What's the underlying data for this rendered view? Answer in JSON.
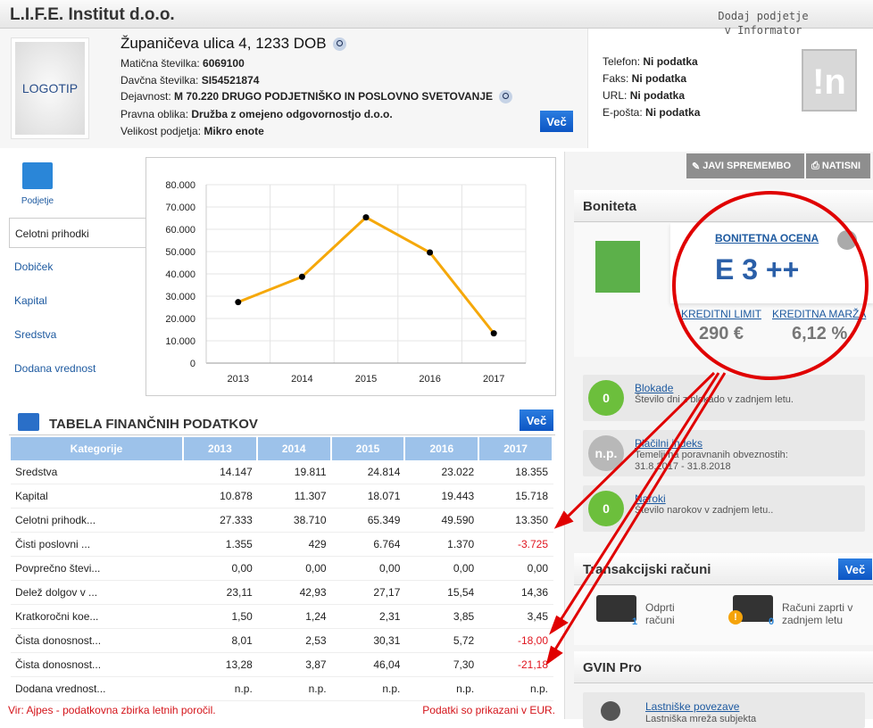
{
  "company": {
    "name": "L.I.F.E. Institut d.o.o.",
    "logo": "LOGOTIP",
    "address": "Županičeva ulica 4, 1233 DOB",
    "fields": [
      {
        "label": "Matična številka: ",
        "value": "6069100"
      },
      {
        "label": "Davčna številka: ",
        "value": "SI54521874"
      },
      {
        "label": "Dejavnost: ",
        "value": "M 70.220 DRUGO PODJETNIŠKO IN POSLOVNO SVETOVANJE"
      },
      {
        "label": "Pravna oblika: ",
        "value": "Družba z omejeno odgovornostjo d.o.o."
      },
      {
        "label": "Velikost podjetja: ",
        "value": "Mikro enote"
      }
    ],
    "vec": "Več"
  },
  "contact": [
    {
      "label": "Telefon: ",
      "value": "Ni podatka"
    },
    {
      "label": "Faks: ",
      "value": "Ni podatka"
    },
    {
      "label": "URL: ",
      "value": "Ni podatka"
    },
    {
      "label": "E-pošta: ",
      "value": "Ni podatka"
    }
  ],
  "informator": {
    "note": "Dodaj podjetje v Informator",
    "logo": "!n"
  },
  "tabs": {
    "icon_label": "Podjetje",
    "items": [
      "Celotni prihodki",
      "Dobiček",
      "Kapital",
      "Sredstva",
      "Dodana vrednost"
    ],
    "selected": 0
  },
  "chart_data": {
    "type": "line",
    "categories": [
      "2013",
      "2014",
      "2015",
      "2016",
      "2017"
    ],
    "values": [
      27333,
      38710,
      65349,
      49590,
      13350
    ],
    "ylim": [
      0,
      80000
    ],
    "yticks": [
      "0",
      "10.000",
      "20.000",
      "30.000",
      "40.000",
      "50.000",
      "60.000",
      "70.000",
      "80.000"
    ],
    "grid": true,
    "color": "#f5a80a"
  },
  "table": {
    "title": "TABELA FINANČNIH PODATKOV",
    "vec": "Več",
    "headers": [
      "Kategorije",
      "2013",
      "2014",
      "2015",
      "2016",
      "2017"
    ],
    "rows": [
      [
        "Sredstva",
        "14.147",
        "19.811",
        "24.814",
        "23.022",
        "18.355"
      ],
      [
        "Kapital",
        "10.878",
        "11.307",
        "18.071",
        "19.443",
        "15.718"
      ],
      [
        "Celotni prihodk...",
        "27.333",
        "38.710",
        "65.349",
        "49.590",
        "13.350"
      ],
      [
        "Čisti poslovni ...",
        "1.355",
        "429",
        "6.764",
        "1.370",
        "-3.725"
      ],
      [
        "Povprečno števi...",
        "0,00",
        "0,00",
        "0,00",
        "0,00",
        "0,00"
      ],
      [
        "Delež dolgov v ...",
        "23,11",
        "42,93",
        "27,17",
        "15,54",
        "14,36"
      ],
      [
        "Kratkoročni koe...",
        "1,50",
        "1,24",
        "2,31",
        "3,85",
        "3,45"
      ],
      [
        "Čista donosnost...",
        "8,01",
        "2,53",
        "30,31",
        "5,72",
        "-18,00"
      ],
      [
        "Čista donosnost...",
        "13,28",
        "3,87",
        "46,04",
        "7,30",
        "-21,18"
      ],
      [
        "Dodana vrednost...",
        "n.p.",
        "n.p.",
        "n.p.",
        "n.p.",
        "n.p."
      ]
    ],
    "source": "Vir: Ajpes - podatkovna zbirka letnih poročil.",
    "currency": "Podatki so prikazani v EUR."
  },
  "toolbar": {
    "report": "JAVI SPREMEMBO",
    "print": "NATISNI"
  },
  "boniteta": {
    "title": "Boniteta",
    "rating_label": "BONITETNA OCENA",
    "rating": "E 3 ++",
    "limit_label": "KREDITNI LIMIT",
    "limit": "290 €",
    "margin_label": "KREDITNA MARŽA",
    "margin": "6,12 %"
  },
  "indicators": [
    {
      "badge": "0",
      "title": "Blokade",
      "desc": "Število dni z blokado v zadnjem letu.",
      "color": "#6cbf3c"
    },
    {
      "badge": "n.p.",
      "title": "Plačilni indeks",
      "desc": "Temelji na poravnanih obveznostih:",
      "desc2": "31.8.2017 - 31.8.2018",
      "color": "#b8b8b8"
    },
    {
      "badge": "0",
      "title": "Naroki",
      "desc": "Število narokov v zadnjem letu..",
      "color": "#6cbf3c"
    }
  ],
  "accounts": {
    "title": "Transakcijski računi",
    "vec": "Več",
    "open_label": "Odprti računi",
    "open_count": "1",
    "closed_label": "Računi zaprti v zadnjem letu",
    "closed_count": "0"
  },
  "gvin": {
    "title": "GVIN Pro",
    "link": "Lastniške povezave",
    "desc": "Lastniška mreža subjekta"
  },
  "annotation_color": "#e00000"
}
